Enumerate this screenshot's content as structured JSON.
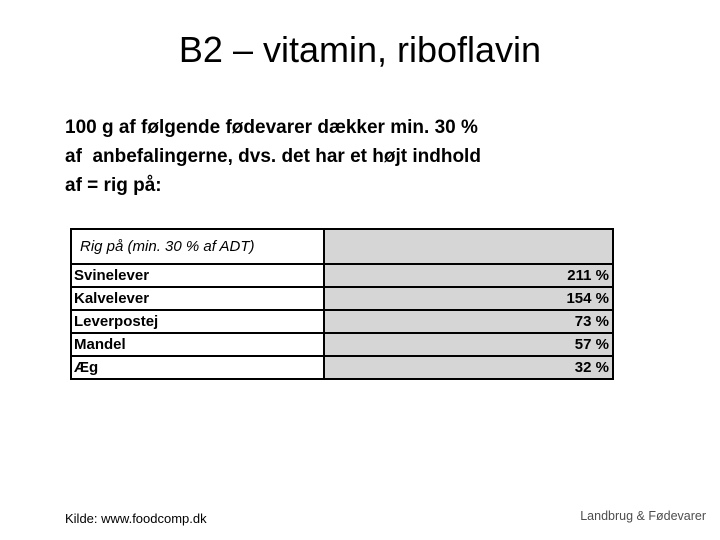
{
  "slide": {
    "title": "B2 – vitamin, riboflavin",
    "body": "100 g af følgende fødevarer dækker min. 30 %\naf  anbefalingerne, dvs. det har et højt indhold\naf = rig på:",
    "table": {
      "header": "Rig på (min. 30 % af ADT)",
      "value_cell_bg": "#d6d6d6",
      "rows": [
        {
          "label": "Svinelever",
          "value": "211 %"
        },
        {
          "label": "Kalvelever",
          "value": "154 %"
        },
        {
          "label": "Leverpostej",
          "value": "73 %"
        },
        {
          "label": "Mandel",
          "value": "57 %"
        },
        {
          "label": "Æg",
          "value": "32 %"
        }
      ]
    },
    "footer": {
      "source": "Kilde: www.foodcomp.dk",
      "logo": "Landbrug & Fødevarer"
    }
  }
}
